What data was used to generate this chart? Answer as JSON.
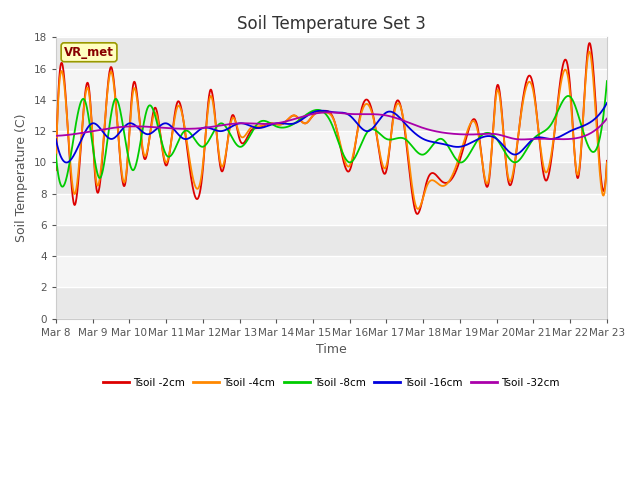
{
  "title": "Soil Temperature Set 3",
  "xlabel": "Time",
  "ylabel": "Soil Temperature (C)",
  "ylim": [
    0,
    18
  ],
  "x_tick_labels": [
    "Mar 8",
    "Mar 9",
    "Mar 10",
    "Mar 11",
    "Mar 12",
    "Mar 13",
    "Mar 14",
    "Mar 15",
    "Mar 16",
    "Mar 17",
    "Mar 18",
    "Mar 19",
    "Mar 20",
    "Mar 21",
    "Mar 22",
    "Mar 23"
  ],
  "series_colors": [
    "#dd0000",
    "#ff8800",
    "#00cc00",
    "#0000dd",
    "#aa00aa"
  ],
  "series_labels": [
    "Tsoil -2cm",
    "Tsoil -4cm",
    "Tsoil -8cm",
    "Tsoil -16cm",
    "Tsoil -32cm"
  ],
  "vr_met_label": "VR_met",
  "bg_color": "#ffffff",
  "band_colors": [
    "#e8e8e8",
    "#f5f5f5"
  ],
  "title_fontsize": 12,
  "axis_fontsize": 9,
  "tick_fontsize": 7.5
}
